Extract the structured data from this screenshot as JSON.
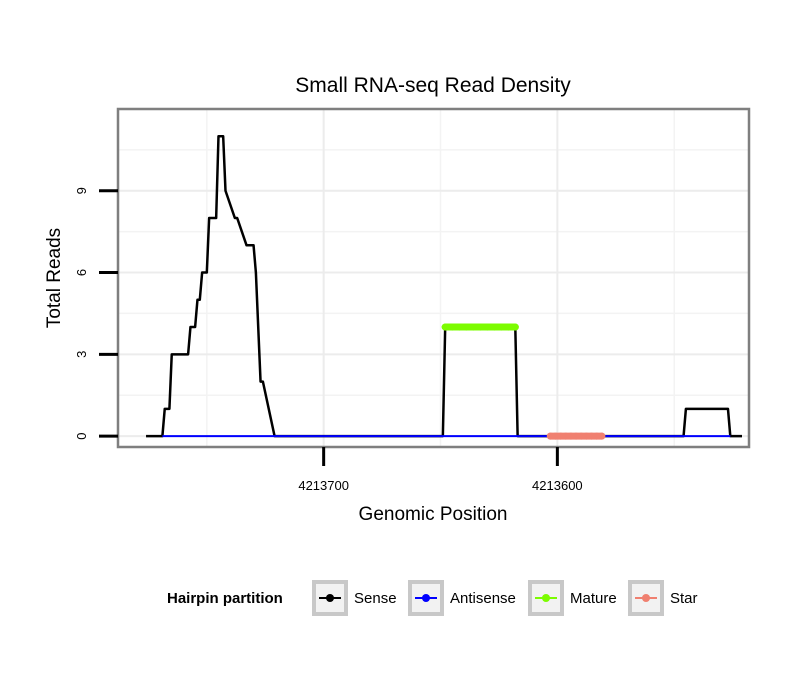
{
  "chart_data": {
    "type": "line",
    "title": "Small RNA-seq Read Density",
    "xlabel": "Genomic Position",
    "ylabel": "Total Reads",
    "xlim": [
      4213788,
      4213518
    ],
    "ylim": [
      -0.4,
      12
    ],
    "x_reversed": true,
    "x_ticks": [
      4213700,
      4213600
    ],
    "x_tick_labels": [
      "4213700",
      "4213600"
    ],
    "y_ticks": [
      0,
      3,
      6,
      9
    ],
    "y_tick_labels": [
      "0",
      "3",
      "6",
      "9"
    ],
    "grid": true,
    "legend": {
      "title": "Hairpin partition",
      "position": "bottom",
      "entries": [
        "Sense",
        "Antisense",
        "Mature",
        "Star"
      ]
    },
    "series": [
      {
        "name": "Sense",
        "color": "#000000",
        "x": [
          4213776,
          4213769,
          4213768,
          4213766,
          4213765,
          4213764,
          4213758,
          4213757,
          4213755,
          4213754,
          4213753,
          4213752,
          4213750,
          4213749,
          4213746,
          4213745,
          4213743,
          4213742,
          4213738,
          4213737,
          4213733,
          4213732,
          4213730,
          4213729,
          4213727,
          4213726,
          4213721,
          4213720,
          4213719,
          4213717,
          4213649,
          4213648,
          4213618,
          4213617,
          4213546,
          4213545,
          4213527,
          4213526,
          4213521
        ],
        "values": [
          0,
          0,
          1,
          1,
          3,
          3,
          3,
          4,
          4,
          5,
          5,
          6,
          6,
          8,
          8,
          11,
          11,
          9,
          8,
          8,
          7,
          7,
          7,
          6,
          2,
          2,
          0,
          0,
          0,
          0,
          0,
          4,
          4,
          0,
          0,
          1,
          1,
          0,
          0
        ]
      },
      {
        "name": "Antisense",
        "color": "#0000ff",
        "x": [
          4213769,
          4213717,
          4213649,
          4213618,
          4213546,
          4213526
        ],
        "values": [
          0,
          0,
          0,
          0,
          0,
          0
        ]
      },
      {
        "name": "Mature",
        "color": "#7cfc00",
        "x": [
          4213648,
          4213618
        ],
        "values": [
          4,
          4
        ]
      },
      {
        "name": "Star",
        "color": "#f08070",
        "x": [
          4213603,
          4213581
        ],
        "values": [
          0,
          0
        ]
      }
    ]
  }
}
